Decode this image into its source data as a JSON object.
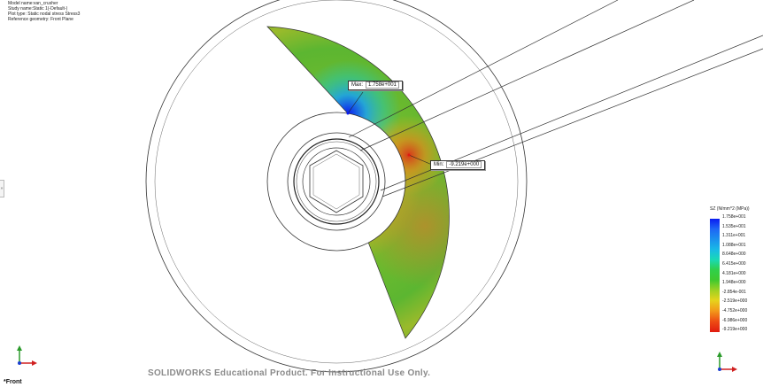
{
  "model_info": {
    "model_name": "Model name:van_crusher",
    "study_name": "Study name:Static 1(-Default-)",
    "plot_type": "Plot type: Static nodal stress Stress3",
    "reference_geometry": "Reference geometry: Front Plane"
  },
  "annotations": {
    "max": {
      "label": "Max:",
      "value": "1.758e+001"
    },
    "min": {
      "label": "Min:",
      "value": "-9.219e+000"
    }
  },
  "legend": {
    "title": "SZ (N/mm^2 (MPa))",
    "values": [
      "1.758e+001",
      "1.535e+001",
      "1.311e+001",
      "1.088e+001",
      "8.648e+000",
      "6.415e+000",
      "4.181e+000",
      "1.948e+000",
      "-2.854e-001",
      "-2.519e+000",
      "-4.752e+000",
      "-6.986e+000",
      "-9.219e+000"
    ]
  },
  "watermark": "SOLIDWORKS Educational Product. For Instructional Use Only.",
  "view_name": "*Front",
  "side_handle": "»",
  "colors": {
    "max_blue": "#0a1cf0",
    "min_red": "#e11b10",
    "mid_green": "#3fc92e"
  }
}
